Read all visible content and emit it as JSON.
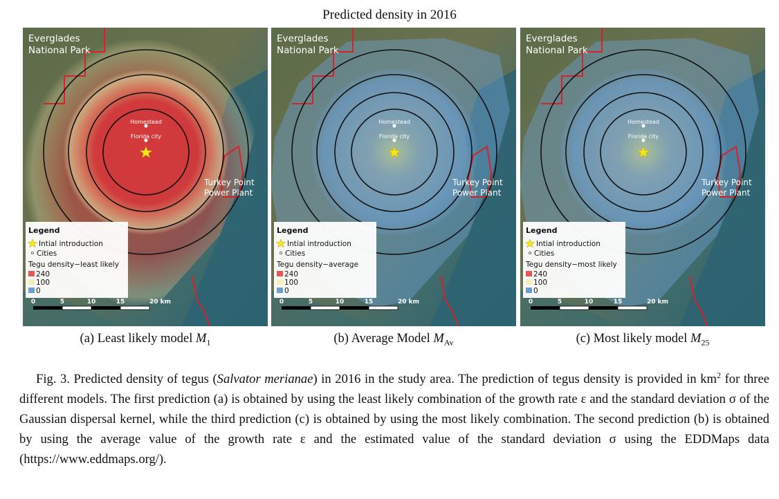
{
  "figure": {
    "title": "Predicted density in 2016"
  },
  "map_labels": {
    "park_line1": "Everglades",
    "park_line2": "National Park",
    "homestead": "Homestead",
    "florida_city": "Florida city",
    "plant_line1": "Turkey Point",
    "plant_line2": "Power Plant"
  },
  "legend": {
    "title": "Legend",
    "introduction": "Intial introduction",
    "cities": "Cities",
    "value_high": "240",
    "value_mid": "100",
    "value_low": "0",
    "colors": {
      "high": "#e3585a",
      "mid": "#f4f0b8",
      "low": "#6d9fd1"
    }
  },
  "scale_bar": {
    "ticks": [
      "0",
      "5",
      "10",
      "15",
      "20 km"
    ]
  },
  "panels": [
    {
      "key": "a",
      "subcaption_prefix": "(a) Least likely model ",
      "model_symbol": "M",
      "model_subscript": "1",
      "density_label": "Tegu density−least likely",
      "overlay": "red",
      "density_fraction_high": 0.9
    },
    {
      "key": "b",
      "subcaption_prefix": "(b) Average Model ",
      "model_symbol": "M",
      "model_subscript": "Av",
      "density_label": "Tegu density−average",
      "overlay": "blue",
      "density_fraction_high": 0.15
    },
    {
      "key": "c",
      "subcaption_prefix": "(c) Most likely model ",
      "model_symbol": "M",
      "model_subscript": "25",
      "density_label": "Tegu density−most likely",
      "overlay": "blue",
      "density_fraction_high": 0.12
    }
  ],
  "caption": {
    "p1": "Fig. 3. Predicted density of tegus (",
    "species": "Salvator merianae",
    "p2": ") in 2016 in the study area. The prediction of tegus density is provided in km",
    "sup": "2",
    "p3": " for three different models. The first prediction (a) is obtained by using the least likely combination of the growth rate ε and the standard deviation σ of the Gaussian dispersal kernel, while the third prediction (c) is obtained by using the most likely combination. The second prediction (b) is obtained by using the average value of the growth rate ε and the estimated value of the standard deviation σ using the EDDMaps data (https://www.eddmaps.org/)."
  }
}
